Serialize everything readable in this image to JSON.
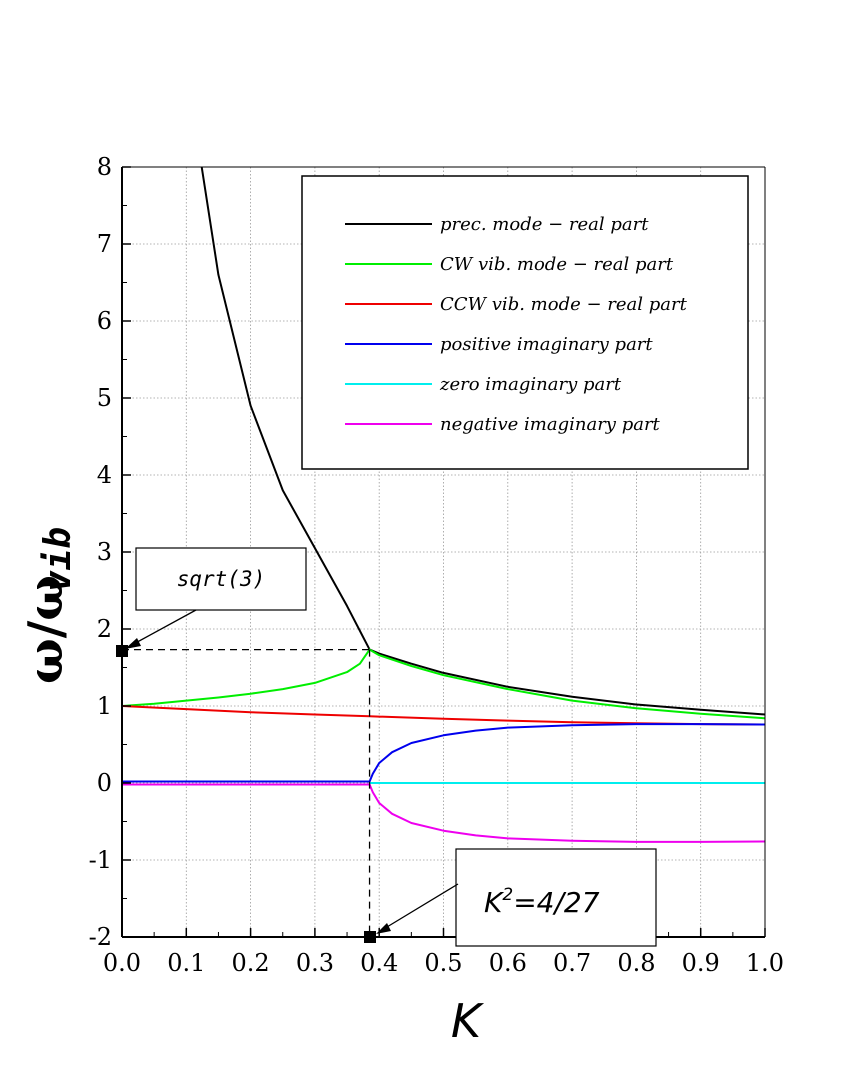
{
  "chart_data": {
    "type": "line",
    "title": "",
    "xlabel": "K",
    "ylabel": "ω/ω",
    "ylabel_subscript": "vib",
    "xlim": [
      0.0,
      1.0
    ],
    "ylim": [
      -2,
      8
    ],
    "grid": true,
    "x_ticks": [
      0.0,
      0.1,
      0.2,
      0.3,
      0.4,
      0.5,
      0.6,
      0.7,
      0.8,
      0.9,
      1.0
    ],
    "x_tick_labels": [
      "0.0",
      "0.1",
      "0.2",
      "0.3",
      "0.4",
      "0.5",
      "0.6",
      "0.7",
      "0.8",
      "0.9",
      "1.0"
    ],
    "y_ticks": [
      -2,
      -1,
      0,
      1,
      2,
      3,
      4,
      5,
      6,
      7,
      8
    ],
    "y_tick_labels": [
      "-2",
      "-1",
      "0",
      "1",
      "2",
      "3",
      "4",
      "5",
      "6",
      "7",
      "8"
    ],
    "legend_position": "top-right",
    "series": [
      {
        "name": "prec. mode − real part",
        "color": "#000000",
        "x": [
          0.124,
          0.15,
          0.2,
          0.25,
          0.3,
          0.35,
          0.385,
          0.4,
          0.45,
          0.5,
          0.6,
          0.7,
          0.8,
          0.9,
          1.0
        ],
        "y": [
          8.0,
          6.6,
          4.9,
          3.8,
          3.05,
          2.3,
          1.732,
          1.68,
          1.55,
          1.43,
          1.25,
          1.12,
          1.02,
          0.95,
          0.89
        ]
      },
      {
        "name": "CW vib. mode − real part",
        "color": "#00ee00",
        "x": [
          0.0,
          0.05,
          0.1,
          0.15,
          0.2,
          0.25,
          0.3,
          0.35,
          0.37,
          0.385,
          0.4,
          0.45,
          0.5,
          0.6,
          0.7,
          0.8,
          0.9,
          1.0
        ],
        "y": [
          1.0,
          1.03,
          1.07,
          1.11,
          1.16,
          1.22,
          1.3,
          1.44,
          1.55,
          1.732,
          1.66,
          1.52,
          1.4,
          1.22,
          1.07,
          0.97,
          0.9,
          0.84
        ]
      },
      {
        "name": "CCW vib. mode − real part",
        "color": "#ee0000",
        "x": [
          0.0,
          0.1,
          0.2,
          0.3,
          0.385,
          0.5,
          0.6,
          0.7,
          0.8,
          0.9,
          1.0
        ],
        "y": [
          1.0,
          0.96,
          0.92,
          0.89,
          0.866,
          0.835,
          0.81,
          0.79,
          0.775,
          0.765,
          0.76
        ]
      },
      {
        "name": "positive imaginary part",
        "color": "#0000ee",
        "x": [
          0.0,
          0.1,
          0.2,
          0.3,
          0.385,
          0.39,
          0.4,
          0.42,
          0.45,
          0.5,
          0.55,
          0.6,
          0.7,
          0.8,
          0.9,
          1.0
        ],
        "y": [
          0.02,
          0.02,
          0.02,
          0.02,
          0.02,
          0.12,
          0.26,
          0.4,
          0.52,
          0.62,
          0.68,
          0.72,
          0.75,
          0.765,
          0.765,
          0.76
        ]
      },
      {
        "name": "zero imaginary part",
        "color": "#00eeee",
        "x": [
          0.385,
          1.0
        ],
        "y": [
          0.0,
          0.0
        ]
      },
      {
        "name": "negative imaginary part",
        "color": "#ee00ee",
        "x": [
          0.0,
          0.1,
          0.2,
          0.3,
          0.385,
          0.39,
          0.4,
          0.42,
          0.45,
          0.5,
          0.55,
          0.6,
          0.7,
          0.8,
          0.9,
          1.0
        ],
        "y": [
          -0.02,
          -0.02,
          -0.02,
          -0.02,
          -0.02,
          -0.12,
          -0.26,
          -0.4,
          -0.52,
          -0.62,
          -0.68,
          -0.72,
          -0.75,
          -0.765,
          -0.765,
          -0.76
        ]
      }
    ],
    "annotations": [
      {
        "text": "sqrt(3)",
        "point": [
          0.0,
          1.732
        ]
      },
      {
        "text_main": "K",
        "text_sup": "2",
        "text_rest": "=4/27",
        "point": [
          0.385,
          -2.0
        ]
      }
    ],
    "guide_lines": {
      "x": 0.385,
      "y": 1.732
    }
  }
}
